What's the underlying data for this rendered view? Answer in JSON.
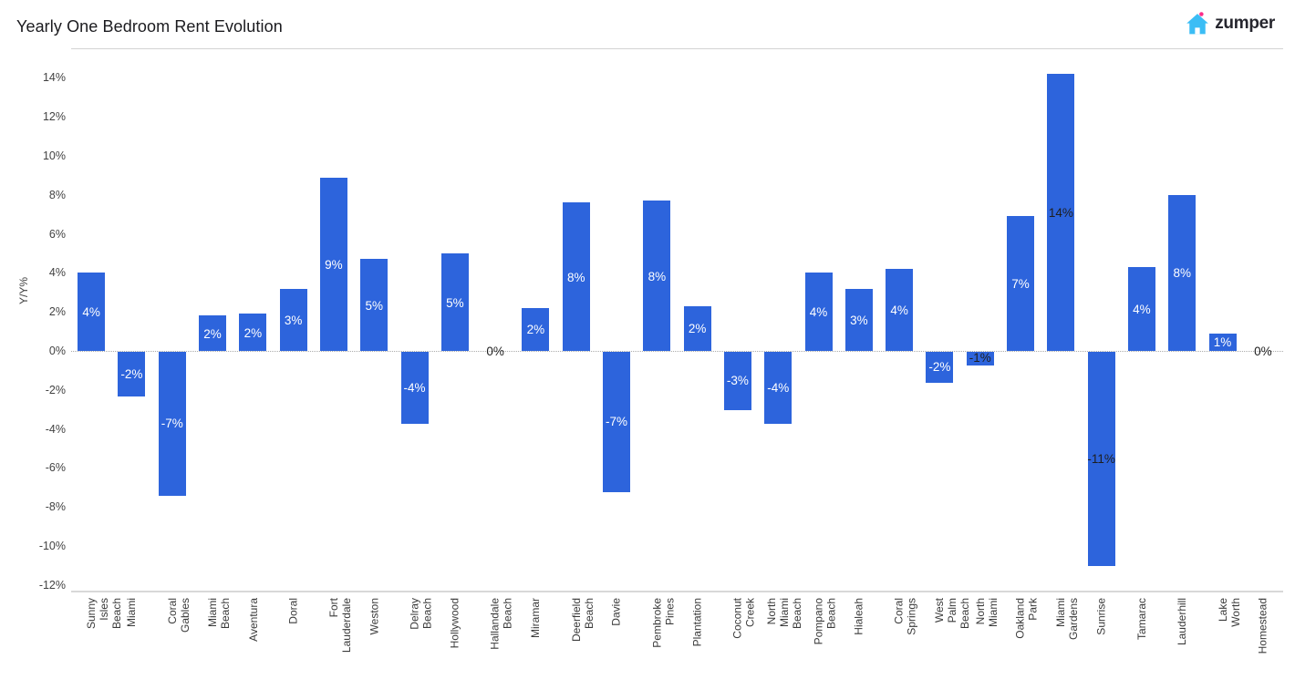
{
  "header": {
    "title": "Yearly One Bedroom Rent Evolution"
  },
  "logo": {
    "brand_text": "zumper",
    "house_icon_color": "#3bbdf5",
    "dot_color": "#fb2e8a",
    "text_color": "#26262e"
  },
  "chart_data": {
    "type": "bar",
    "title": "Yearly One Bedroom Rent Evolution",
    "xlabel": "",
    "ylabel": "Y/Y%",
    "ylim": [
      -12,
      14
    ],
    "yticks": [
      14,
      12,
      10,
      8,
      6,
      4,
      2,
      0,
      -2,
      -4,
      -6,
      -8,
      -10,
      -12
    ],
    "ytick_labels": [
      "14%",
      "12%",
      "10%",
      "8%",
      "6%",
      "4%",
      "2%",
      "0%",
      "-2%",
      "-4%",
      "-6%",
      "-8%",
      "-10%",
      "-12%"
    ],
    "grid": "dotted-zero-line-only",
    "legend": "none",
    "bar_color": "#2d64dc",
    "categories": [
      "Sunny Isles Beach",
      "Miami",
      "Coral Gables",
      "Miami Beach",
      "Aventura",
      "Doral",
      "Fort Lauderdale",
      "Weston",
      "Delray Beach",
      "Hollywood",
      "Hallandale Beach",
      "Miramar",
      "Deerfield Beach",
      "Davie",
      "Pembroke Pines",
      "Plantation",
      "Coconut Creek",
      "North Miami Beach",
      "Pompano Beach",
      "Hialeah",
      "Coral Springs",
      "West Palm Beach",
      "North Miami",
      "Oakland Park",
      "Miami Gardens",
      "Sunrise",
      "Tamarac",
      "Lauderhill",
      "Lake Worth",
      "Homestead"
    ],
    "x_tick_display": [
      "Sunny Isles Beach",
      "Miami",
      "Coral Gables",
      "Miami Beach",
      "Aventura",
      "Doral",
      "Fort Lauderdale",
      "Weston",
      "Delray Beach",
      "Hollywood",
      "Hallandale Beach",
      "Miramar",
      "Deerfield Beach",
      "Davie",
      "Pembroke Pines",
      "Plantation",
      "Coconut Creek",
      "North Miami\nBeach",
      "Pompano Beach",
      "Hialeah",
      "Coral Springs",
      "West Palm Beach",
      "North Miami",
      "Oakland Park",
      "Miami Gardens",
      "Sunrise",
      "Tamarac",
      "Lauderhill",
      "Lake Worth",
      "Homestead"
    ],
    "values": [
      4,
      -2,
      -7,
      2,
      2,
      3,
      9,
      5,
      -4,
      5,
      0,
      2,
      8,
      -7,
      8,
      2,
      -3,
      -4,
      4,
      3,
      4,
      -2,
      -1,
      7,
      14,
      -11,
      4,
      8,
      1,
      0
    ],
    "bar_heights_precise": [
      4.0,
      -2.3,
      -7.4,
      1.8,
      1.9,
      3.2,
      8.9,
      4.7,
      -3.7,
      5.0,
      0,
      2.2,
      7.6,
      -7.2,
      7.7,
      2.3,
      -3.0,
      -3.7,
      4.0,
      3.2,
      4.2,
      -1.6,
      -0.7,
      6.9,
      14.2,
      -11.0,
      4.3,
      8.0,
      0.9,
      0
    ],
    "bar_labels": [
      "4%",
      "-2%",
      "-7%",
      "2%",
      "2%",
      "3%",
      "9%",
      "5%",
      "-4%",
      "5%",
      "0%",
      "2%",
      "8%",
      "-7%",
      "8%",
      "2%",
      "-3%",
      "-4%",
      "4%",
      "3%",
      "4%",
      "-2%",
      "-1%",
      "7%",
      "14%",
      "-11%",
      "4%",
      "8%",
      "1%",
      "0%"
    ],
    "bar_label_colors": [
      "#ffffff",
      "#ffffff",
      "#ffffff",
      "#ffffff",
      "#ffffff",
      "#ffffff",
      "#ffffff",
      "#ffffff",
      "#ffffff",
      "#ffffff",
      "#1e1e1e",
      "#ffffff",
      "#ffffff",
      "#ffffff",
      "#ffffff",
      "#ffffff",
      "#ffffff",
      "#ffffff",
      "#ffffff",
      "#ffffff",
      "#ffffff",
      "#ffffff",
      "#1e1e1e",
      "#ffffff",
      "#1e1e1e",
      "#1e1e1e",
      "#ffffff",
      "#ffffff",
      "#ffffff",
      "#1e1e1e"
    ]
  }
}
